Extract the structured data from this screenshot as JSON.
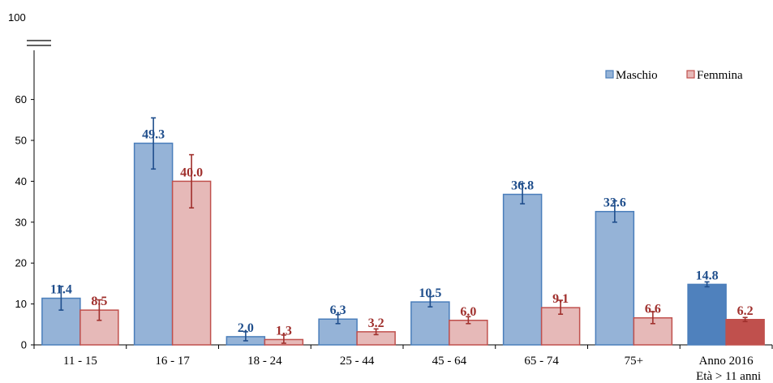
{
  "chart_data": {
    "type": "bar",
    "title": "",
    "xlabel": "",
    "ylabel": "",
    "ylim": [
      0,
      70
    ],
    "axis_break": true,
    "y_ticks": [
      0,
      10,
      20,
      30,
      40,
      50,
      60
    ],
    "y_top_label": "100",
    "grid": false,
    "legend_position": "top-right",
    "categories": [
      "11 - 15",
      "16 - 17",
      "18 - 24",
      "25 - 44",
      "45 - 64",
      "65 - 74",
      "75+",
      "Anno 2016"
    ],
    "category_sublabels": [
      "",
      "",
      "",
      "",
      "",
      "",
      "",
      "Età > 11 anni"
    ],
    "series": [
      {
        "name": "Maschio",
        "color": "#95b3d7",
        "border": "#4a7ebb",
        "label_color": "#1f4e8c",
        "highlight_color": "#4f81bd",
        "values": [
          11.4,
          49.3,
          2.0,
          6.3,
          10.5,
          36.8,
          32.6,
          14.8
        ],
        "err_low": [
          8.5,
          43.0,
          1.0,
          5.2,
          9.3,
          34.5,
          30.0,
          14.2
        ],
        "err_high": [
          14.3,
          55.5,
          3.2,
          7.4,
          11.8,
          39.5,
          35.2,
          15.4
        ]
      },
      {
        "name": "Femmina",
        "color": "#e6b9b8",
        "border": "#c0504d",
        "label_color": "#a0302d",
        "highlight_color": "#c0504d",
        "values": [
          8.5,
          40.0,
          1.3,
          3.2,
          6.0,
          9.1,
          6.6,
          6.2
        ],
        "err_low": [
          6.0,
          33.5,
          0.4,
          2.5,
          5.2,
          7.5,
          5.2,
          5.7
        ],
        "err_high": [
          11.0,
          46.5,
          2.4,
          3.9,
          6.9,
          10.9,
          8.1,
          6.7
        ]
      }
    ],
    "highlighted_category_index": 7
  }
}
